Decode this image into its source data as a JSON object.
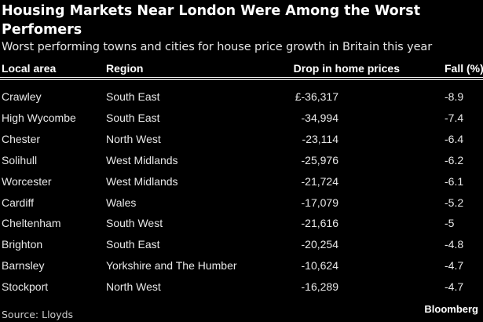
{
  "chart_data": {
    "type": "table",
    "title": "Housing Markets Near London Were Among the Worst Perfomers",
    "subtitle": "Worst performing towns and cities for house price growth in Britain this year",
    "columns": [
      "Local area",
      "Region",
      "Drop in home prices",
      "Fall (%)"
    ],
    "rows": [
      [
        "Crawley",
        "South East",
        "£-36,317",
        "-8.9"
      ],
      [
        "High Wycombe",
        "South East",
        "-34,994",
        "-7.4"
      ],
      [
        "Chester",
        "North West",
        "-23,114",
        "-6.4"
      ],
      [
        "Solihull",
        "West Midlands",
        "-25,976",
        "-6.2"
      ],
      [
        "Worcester",
        "West Midlands",
        "-21,724",
        "-6.1"
      ],
      [
        "Cardiff",
        "Wales",
        "-17,079",
        "-5.2"
      ],
      [
        "Cheltenham",
        "South West",
        "-21,616",
        "-5"
      ],
      [
        "Brighton",
        "South East",
        "-20,254",
        "-4.8"
      ],
      [
        "Barnsley",
        "Yorkshire and The Humber",
        "-10,624",
        "-4.7"
      ],
      [
        "Stockport",
        "North West",
        "-16,289",
        "-4.7"
      ]
    ],
    "source": "Source: Lloyds",
    "brand": "Bloomberg"
  }
}
